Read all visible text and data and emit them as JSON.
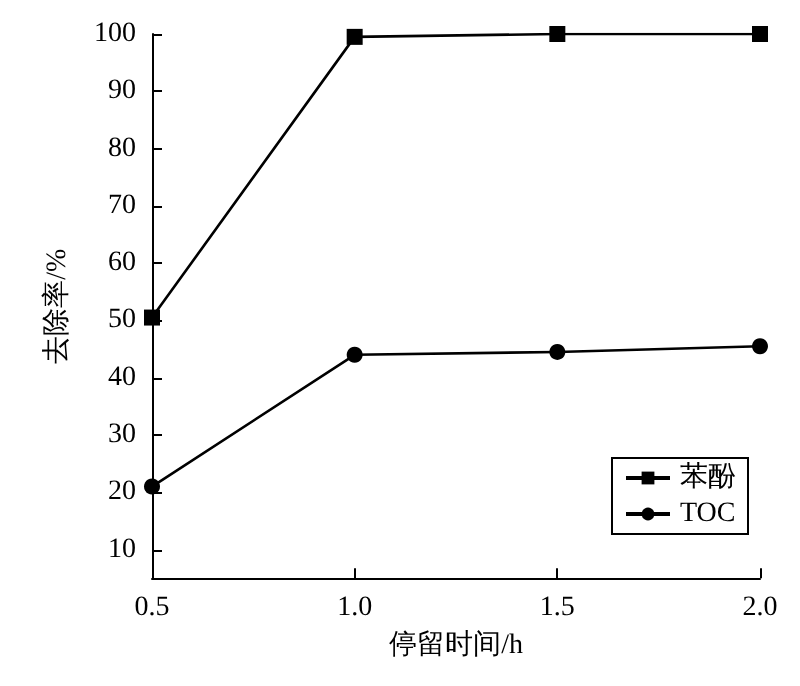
{
  "chart_data": {
    "type": "line",
    "xlabel": "停留时间/h",
    "ylabel": "去除率/%",
    "x": [
      0.5,
      1.0,
      1.5,
      2.0
    ],
    "series": [
      {
        "name": "苯酚",
        "color": "#000000",
        "marker": "square",
        "values": [
          50.5,
          99.5,
          100,
          100
        ]
      },
      {
        "name": "TOC",
        "color": "#000000",
        "marker": "circle",
        "values": [
          21,
          44,
          44.5,
          45.5
        ]
      }
    ],
    "xlim": [
      0.5,
      2.0
    ],
    "xticks": [
      0.5,
      {
        "value": 1.0,
        "label": "1.0"
      },
      1.5,
      {
        "value": 2.0,
        "label": "2.0"
      }
    ],
    "ylim": [
      5,
      100
    ],
    "yticks": [
      10,
      20,
      30,
      40,
      50,
      60,
      70,
      80,
      90,
      100
    ],
    "grid": false,
    "legend": "bottom right",
    "line_style": "solid"
  }
}
